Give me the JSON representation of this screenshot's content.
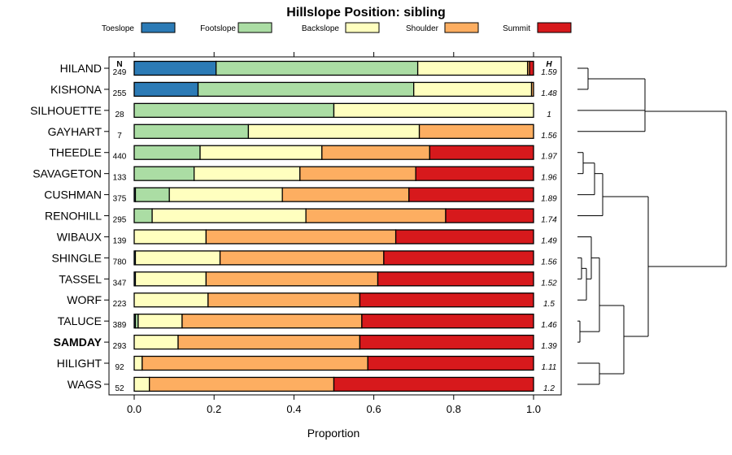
{
  "chart_data": {
    "type": "bar",
    "stacked": true,
    "horizontal": true,
    "title": "Hillslope Position: sibling",
    "xlabel": "Proportion",
    "xlim": [
      0,
      1
    ],
    "x_ticks": [
      "0.0",
      "0.2",
      "0.4",
      "0.6",
      "0.8",
      "1.0"
    ],
    "legend_position": "top",
    "n_header": "N",
    "h_header": "H",
    "series": [
      {
        "name": "Toeslope",
        "color": "#2C7BB6"
      },
      {
        "name": "Footslope",
        "color": "#ABDDA4"
      },
      {
        "name": "Backslope",
        "color": "#FFFFBF"
      },
      {
        "name": "Shoulder",
        "color": "#FDAE61"
      },
      {
        "name": "Summit",
        "color": "#D7191C"
      }
    ],
    "rows": [
      {
        "label": "HILAND",
        "n": "249",
        "h": "1.59",
        "bold": false,
        "values": [
          0.205,
          0.505,
          0.275,
          0.005,
          0.01
        ]
      },
      {
        "label": "KISHONA",
        "n": "255",
        "h": "1.48",
        "bold": false,
        "values": [
          0.16,
          0.54,
          0.295,
          0.005,
          0.0
        ]
      },
      {
        "label": "SILHOUETTE",
        "n": "28",
        "h": "1",
        "bold": false,
        "values": [
          0.0,
          0.5,
          0.5,
          0.0,
          0.0
        ]
      },
      {
        "label": "GAYHART",
        "n": "7",
        "h": "1.56",
        "bold": false,
        "values": [
          0.0,
          0.286,
          0.428,
          0.286,
          0.0
        ]
      },
      {
        "label": "THEEDLE",
        "n": "440",
        "h": "1.97",
        "bold": false,
        "values": [
          0.0,
          0.165,
          0.305,
          0.27,
          0.26
        ]
      },
      {
        "label": "SAVAGETON",
        "n": "133",
        "h": "1.96",
        "bold": false,
        "values": [
          0.0,
          0.15,
          0.265,
          0.29,
          0.295
        ]
      },
      {
        "label": "CUSHMAN",
        "n": "375",
        "h": "1.89",
        "bold": false,
        "values": [
          0.003,
          0.085,
          0.283,
          0.317,
          0.312
        ]
      },
      {
        "label": "RENOHILL",
        "n": "295",
        "h": "1.74",
        "bold": false,
        "values": [
          0.0,
          0.045,
          0.385,
          0.35,
          0.22
        ]
      },
      {
        "label": "WIBAUX",
        "n": "139",
        "h": "1.49",
        "bold": false,
        "values": [
          0.0,
          0.0,
          0.18,
          0.475,
          0.345
        ]
      },
      {
        "label": "SHINGLE",
        "n": "780",
        "h": "1.56",
        "bold": false,
        "values": [
          0.003,
          0.0,
          0.212,
          0.41,
          0.375
        ]
      },
      {
        "label": "TASSEL",
        "n": "347",
        "h": "1.52",
        "bold": false,
        "values": [
          0.003,
          0.0,
          0.177,
          0.43,
          0.39
        ]
      },
      {
        "label": "WORF",
        "n": "223",
        "h": "1.5",
        "bold": false,
        "values": [
          0.0,
          0.0,
          0.185,
          0.38,
          0.435
        ]
      },
      {
        "label": "TALUCE",
        "n": "389",
        "h": "1.46",
        "bold": false,
        "values": [
          0.003,
          0.007,
          0.11,
          0.45,
          0.43
        ]
      },
      {
        "label": "SAMDAY",
        "n": "293",
        "h": "1.39",
        "bold": true,
        "values": [
          0.0,
          0.0,
          0.11,
          0.455,
          0.435
        ]
      },
      {
        "label": "HILIGHT",
        "n": "92",
        "h": "1.11",
        "bold": false,
        "values": [
          0.0,
          0.0,
          0.02,
          0.565,
          0.415
        ]
      },
      {
        "label": "WAGS",
        "n": "52",
        "h": "1.2",
        "bold": false,
        "values": [
          0.0,
          0.0,
          0.038,
          0.462,
          0.5
        ]
      }
    ]
  }
}
